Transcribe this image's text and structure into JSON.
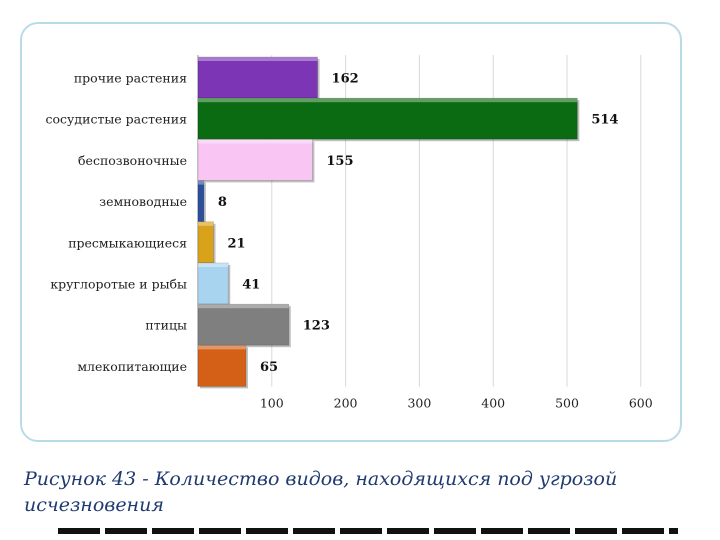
{
  "chart_data": {
    "type": "bar",
    "orientation": "horizontal",
    "categories": [
      "прочие растения",
      "сосудистые растения",
      "беспозвоночные",
      "земноводные",
      "пресмыкающиеся",
      "круглоротые и рыбы",
      "птицы",
      "млекопитающие"
    ],
    "values": [
      162,
      514,
      155,
      8,
      21,
      41,
      123,
      65
    ],
    "colors": [
      "#7b35b5",
      "#0b6b12",
      "#f9c6f3",
      "#2b4f9a",
      "#d9a21b",
      "#a9d4f0",
      "#7f7f7f",
      "#d45f16"
    ],
    "xticks": [
      "100",
      "200",
      "300",
      "400",
      "500",
      "600"
    ],
    "xlim": [
      0,
      600
    ],
    "grid": "vertical",
    "legend": "none"
  },
  "caption": "Рисунок 43 - Количество видов, находящихся под угрозой исчезновения"
}
